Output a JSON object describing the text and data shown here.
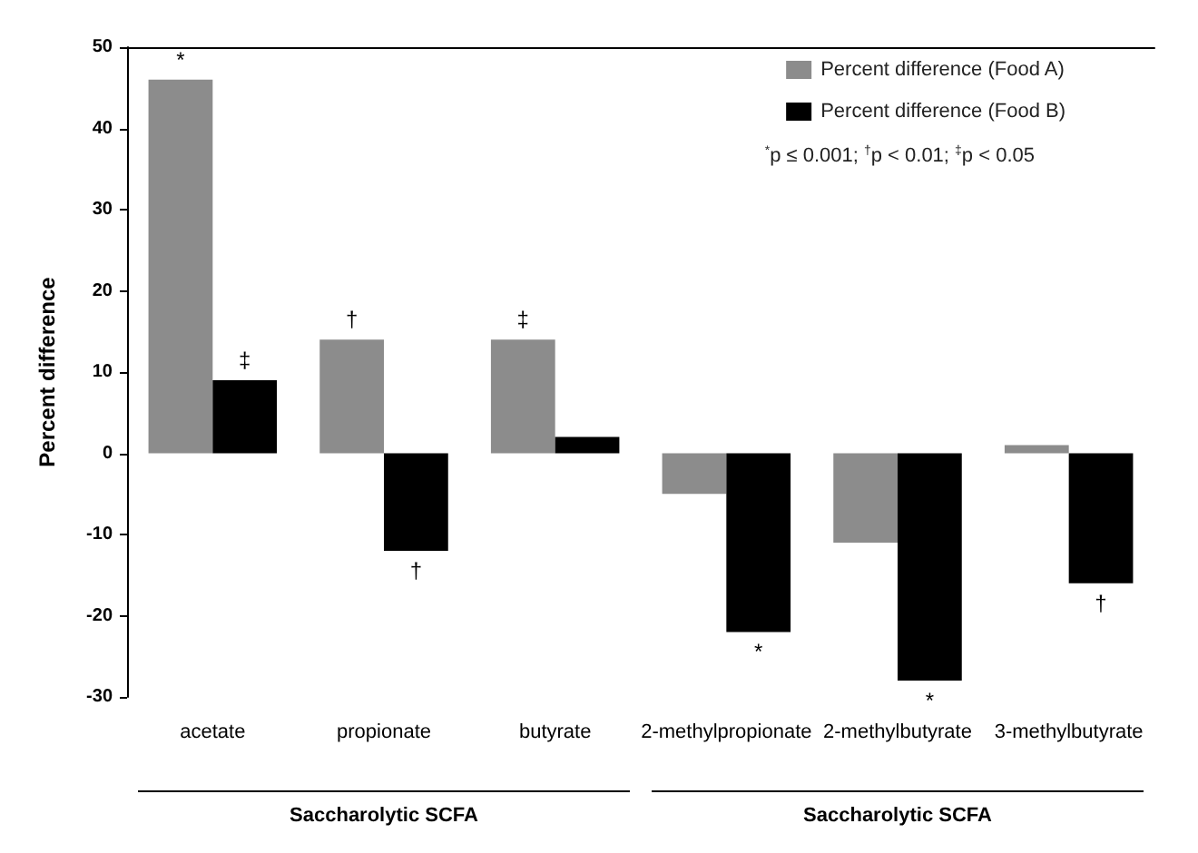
{
  "chart_data": {
    "type": "bar",
    "ylabel": "Percent difference",
    "categories": [
      "acetate",
      "propionate",
      "butyrate",
      "2-methylpropionate",
      "2-methylbutyrate",
      "3-methylbutyrate"
    ],
    "series": [
      {
        "name": "Percent difference (Food A)",
        "color": "#8c8c8c",
        "values": [
          46,
          14,
          14,
          -5,
          -11,
          1
        ],
        "value_labels": [
          "*",
          "†",
          "‡",
          null,
          null,
          null
        ]
      },
      {
        "name": "Percent difference (Food B)",
        "color": "#000000",
        "values": [
          9,
          -12,
          2,
          -22,
          -28,
          -16
        ],
        "value_labels": [
          "‡",
          "†",
          null,
          "*",
          "*",
          "†"
        ]
      }
    ],
    "ylim": [
      -30,
      50
    ],
    "yticks": [
      -30,
      -20,
      -10,
      0,
      10,
      20,
      30,
      40,
      50
    ],
    "grid": false,
    "legend": "top right",
    "annotations": [
      "$^{*}$p ≤ 0.001; $^{†}$p < 0.01; $^{‡}$p < 0.05",
      "Saccharolytic SCFA",
      "Saccharolytic SCFA"
    ]
  }
}
